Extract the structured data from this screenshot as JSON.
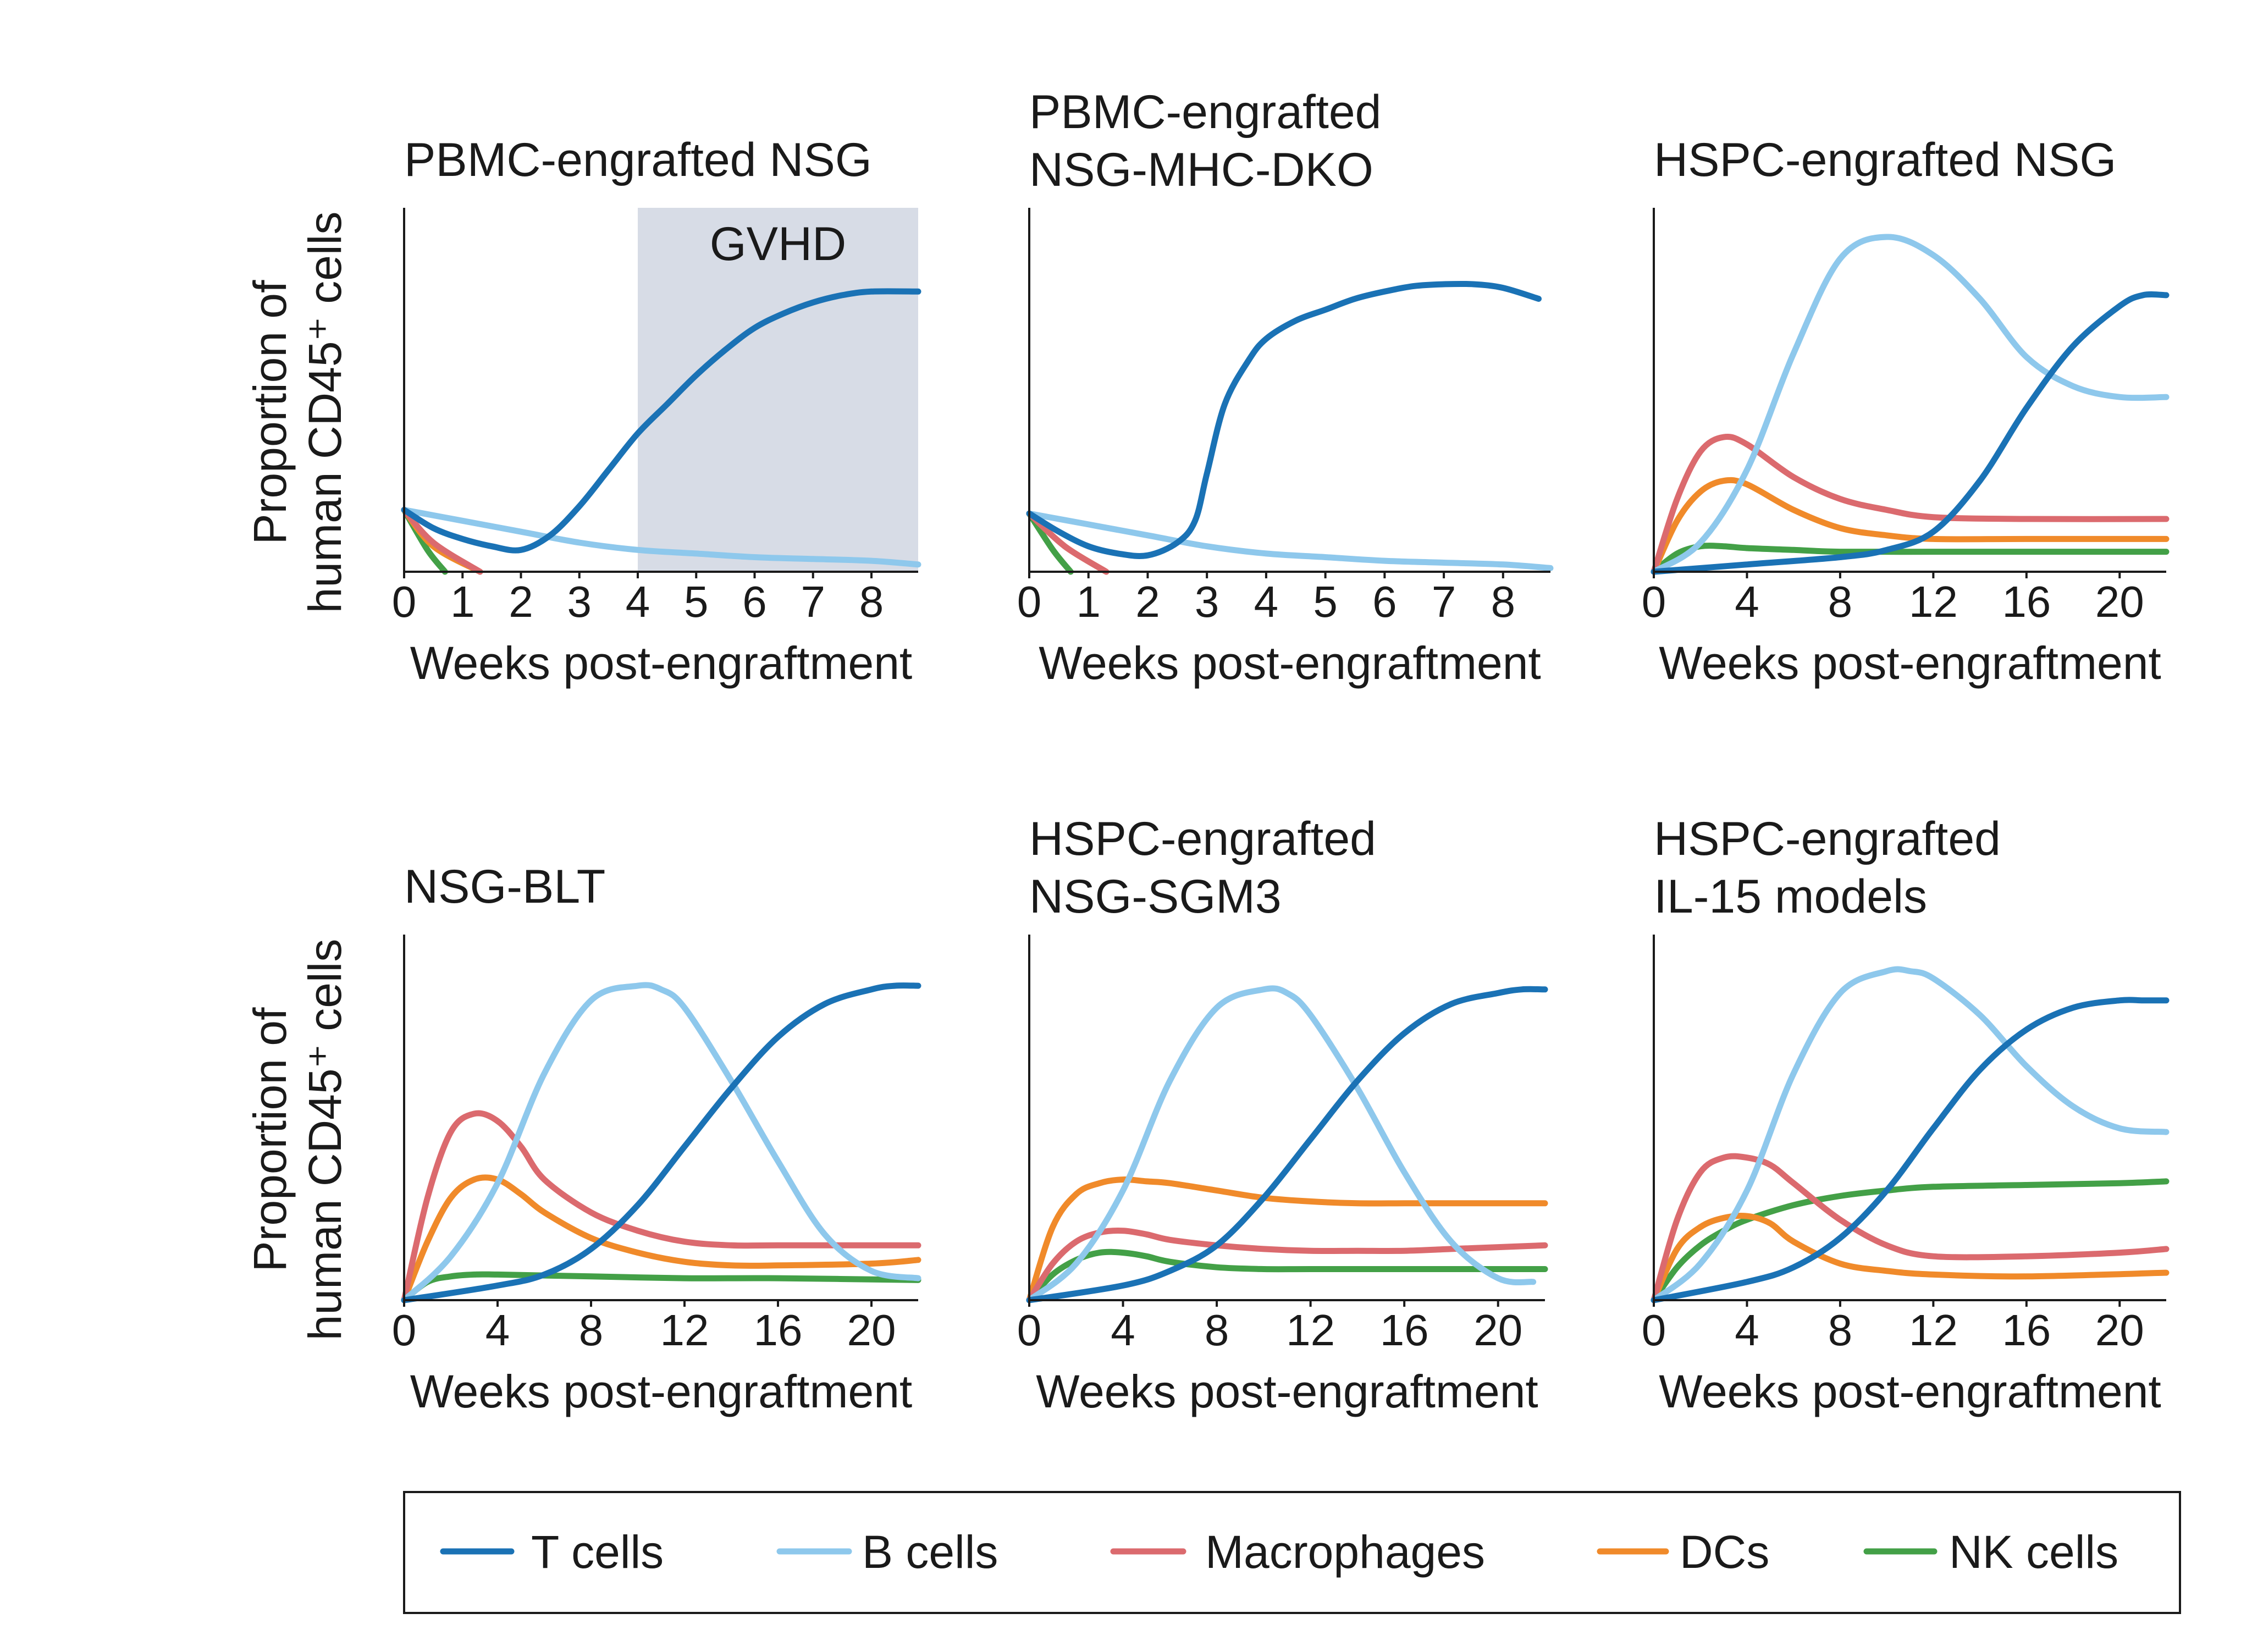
{
  "series_colors": {
    "T cells": "#1a72b5",
    "B cells": "#8ec8ec",
    "Macrophages": "#db6a6e",
    "DCs": "#f08a2a",
    "NK cells": "#43a047"
  },
  "shade_color": "#d7dce6",
  "legend": {
    "items": [
      {
        "name": "T cells",
        "label": "T cells"
      },
      {
        "name": "B cells",
        "label": "B cells"
      },
      {
        "name": "Macrophages",
        "label": "Macrophages"
      },
      {
        "name": "DCs",
        "label": "DCs"
      },
      {
        "name": "NK cells",
        "label": "NK cells"
      }
    ]
  },
  "y_axis_label": [
    "Proportion of",
    "human CD45⁺ cells"
  ],
  "chart_data": [
    {
      "type": "line",
      "title": [
        "PBMC-engrafted NSG"
      ],
      "xlabel": "Weeks post-engraftment",
      "ylabel": "Proportion of human CD45⁺ cells",
      "xlim": [
        0,
        8.8
      ],
      "ylim": [
        0,
        100
      ],
      "xticks": [
        0,
        1,
        2,
        3,
        4,
        5,
        6,
        7,
        8
      ],
      "shaded_region": {
        "label": "GVHD",
        "x": [
          4,
          8.8
        ]
      },
      "series": [
        {
          "name": "T cells",
          "x": [
            0,
            0.5,
            1,
            1.5,
            2,
            2.5,
            3,
            3.5,
            4,
            4.5,
            5,
            5.5,
            6,
            6.5,
            7,
            7.5,
            8,
            8.8
          ],
          "y": [
            17,
            12,
            9,
            7,
            6,
            10,
            18,
            28,
            38,
            46,
            54,
            61,
            67,
            71,
            74,
            76,
            77,
            77
          ]
        },
        {
          "name": "B cells",
          "x": [
            0,
            1,
            2,
            3,
            4,
            5,
            6,
            7,
            8,
            8.8
          ],
          "y": [
            17,
            14,
            11,
            8,
            6,
            5,
            4,
            3.5,
            3,
            2
          ]
        },
        {
          "name": "Macrophages",
          "x": [
            0,
            0.5,
            1.3
          ],
          "y": [
            17,
            8,
            0
          ]
        },
        {
          "name": "DCs",
          "x": [
            0,
            0.5,
            1.3
          ],
          "y": [
            17,
            7,
            0
          ]
        },
        {
          "name": "NK cells",
          "x": [
            0,
            0.4,
            0.7
          ],
          "y": [
            17,
            6,
            0
          ]
        }
      ]
    },
    {
      "type": "line",
      "title": [
        "PBMC-engrafted",
        "NSG-MHC-DKO"
      ],
      "xlabel": "Weeks post-engraftment",
      "ylabel": "Proportion of human CD45⁺ cells",
      "xlim": [
        0,
        8.8
      ],
      "ylim": [
        0,
        100
      ],
      "xticks": [
        0,
        1,
        2,
        3,
        4,
        5,
        6,
        7,
        8
      ],
      "series": [
        {
          "name": "T cells",
          "x": [
            0,
            0.5,
            1,
            1.5,
            2,
            2.5,
            2.8,
            3,
            3.3,
            3.7,
            4,
            4.5,
            5,
            5.5,
            6,
            6.5,
            7,
            7.5,
            8,
            8.6
          ],
          "y": [
            16,
            11,
            7,
            5,
            4.5,
            8,
            14,
            27,
            46,
            58,
            64,
            69,
            72,
            75,
            77,
            78.5,
            79,
            79,
            78,
            75
          ]
        },
        {
          "name": "B cells",
          "x": [
            0,
            1,
            2,
            3,
            4,
            5,
            6,
            7,
            8,
            8.8
          ],
          "y": [
            16,
            13,
            10,
            7,
            5,
            4,
            3,
            2.5,
            2,
            1
          ]
        },
        {
          "name": "Macrophages",
          "x": [
            0,
            0.6,
            1.3
          ],
          "y": [
            16,
            7,
            0
          ]
        },
        {
          "name": "DCs",
          "x": [
            0,
            0.6,
            1.3
          ],
          "y": [
            16,
            7,
            0
          ]
        },
        {
          "name": "NK cells",
          "x": [
            0,
            0.4,
            0.7
          ],
          "y": [
            16,
            6,
            0
          ]
        }
      ]
    },
    {
      "type": "line",
      "title": [
        "HSPC-engrafted NSG"
      ],
      "xlabel": "Weeks post-engraftment",
      "ylabel": "Proportion of human CD45⁺ cells",
      "xlim": [
        0,
        22
      ],
      "ylim": [
        0,
        100
      ],
      "xticks": [
        0,
        4,
        8,
        12,
        16,
        20
      ],
      "series": [
        {
          "name": "T cells",
          "x": [
            0,
            4,
            8,
            10,
            12,
            14,
            16,
            18,
            20,
            21,
            22
          ],
          "y": [
            0,
            2,
            4,
            6,
            11,
            25,
            45,
            62,
            73,
            76,
            76
          ]
        },
        {
          "name": "B cells",
          "x": [
            0,
            2,
            4,
            6,
            8,
            10,
            12,
            14,
            16,
            18,
            20,
            22
          ],
          "y": [
            0,
            8,
            28,
            60,
            86,
            92,
            87,
            75,
            59,
            51,
            48,
            48
          ]
        },
        {
          "name": "Macrophages",
          "x": [
            0,
            1,
            2,
            3,
            4,
            6,
            8,
            10,
            12,
            16,
            22
          ],
          "y": [
            0,
            20,
            33,
            37,
            35,
            26,
            20,
            17,
            15,
            14.5,
            14.5
          ]
        },
        {
          "name": "DCs",
          "x": [
            0,
            1,
            2,
            3,
            4,
            6,
            8,
            10,
            12,
            16,
            22
          ],
          "y": [
            0,
            14,
            22,
            25,
            24,
            17,
            12,
            10,
            9,
            9,
            9
          ]
        },
        {
          "name": "NK cells",
          "x": [
            0,
            1,
            2,
            3,
            4,
            6,
            8,
            12,
            16,
            22
          ],
          "y": [
            0,
            5,
            7,
            7,
            6.5,
            6,
            5.5,
            5.5,
            5.5,
            5.5
          ]
        }
      ]
    },
    {
      "type": "line",
      "title": [
        "NSG-BLT"
      ],
      "xlabel": "Weeks post-engraftment",
      "ylabel": "Proportion of human CD45⁺ cells",
      "xlim": [
        0,
        22
      ],
      "ylim": [
        0,
        100
      ],
      "xticks": [
        0,
        4,
        8,
        12,
        16,
        20
      ],
      "series": [
        {
          "name": "T cells",
          "x": [
            0,
            4,
            6,
            8,
            10,
            12,
            14,
            16,
            18,
            20,
            21,
            22
          ],
          "y": [
            0,
            4,
            7,
            14,
            26,
            42,
            58,
            72,
            81,
            85,
            86,
            86
          ]
        },
        {
          "name": "B cells",
          "x": [
            0,
            2,
            4,
            6,
            8,
            10,
            11,
            12,
            14,
            16,
            18,
            20,
            22
          ],
          "y": [
            0,
            12,
            32,
            62,
            82,
            86,
            85,
            80,
            60,
            38,
            18,
            8,
            6
          ]
        },
        {
          "name": "Macrophages",
          "x": [
            0,
            1,
            2,
            3,
            4,
            5,
            6,
            8,
            10,
            12,
            14,
            16,
            22
          ],
          "y": [
            0,
            28,
            46,
            51,
            49,
            42,
            33,
            24,
            19,
            16,
            15,
            15,
            15
          ]
        },
        {
          "name": "DCs",
          "x": [
            0,
            1,
            2,
            3,
            4,
            5,
            6,
            8,
            10,
            12,
            14,
            16,
            20,
            22
          ],
          "y": [
            0,
            16,
            28,
            33,
            33,
            29,
            24,
            17,
            13,
            10.5,
            9.5,
            9.5,
            10,
            11
          ]
        },
        {
          "name": "NK cells",
          "x": [
            0,
            1,
            2,
            3,
            4,
            8,
            12,
            16,
            22
          ],
          "y": [
            0,
            5,
            6.5,
            7,
            7,
            6.5,
            6,
            6,
            5.5
          ]
        }
      ]
    },
    {
      "type": "line",
      "title": [
        "HSPC-engrafted",
        "NSG-SGM3"
      ],
      "xlabel": "Weeks post-engraftment",
      "ylabel": "Proportion of human CD45⁺ cells",
      "xlim": [
        0,
        22
      ],
      "ylim": [
        0,
        100
      ],
      "xticks": [
        0,
        4,
        8,
        12,
        16,
        20
      ],
      "series": [
        {
          "name": "T cells",
          "x": [
            0,
            4,
            6,
            8,
            10,
            12,
            14,
            16,
            18,
            20,
            21,
            22
          ],
          "y": [
            0,
            4,
            8,
            15,
            28,
            44,
            60,
            73,
            81,
            84,
            85,
            85
          ]
        },
        {
          "name": "B cells",
          "x": [
            0,
            2,
            4,
            6,
            8,
            10,
            11,
            12,
            14,
            16,
            18,
            20,
            21.5
          ],
          "y": [
            0,
            10,
            30,
            60,
            80,
            85,
            84,
            78,
            58,
            35,
            16,
            6,
            5
          ]
        },
        {
          "name": "Macrophages",
          "x": [
            0,
            1,
            2,
            3,
            4,
            5,
            6,
            8,
            10,
            12,
            14,
            16,
            18,
            20,
            22
          ],
          "y": [
            0,
            10,
            16,
            18.5,
            19,
            18,
            16.5,
            15,
            14,
            13.5,
            13.5,
            13.5,
            14,
            14.5,
            15
          ]
        },
        {
          "name": "DCs",
          "x": [
            0,
            1,
            2,
            3,
            4,
            5,
            6,
            8,
            10,
            12,
            14,
            16,
            18,
            20,
            22
          ],
          "y": [
            0,
            20,
            29,
            32,
            33,
            32.5,
            32,
            30,
            28,
            27,
            26.5,
            26.5,
            26.5,
            26.5,
            26.5
          ]
        },
        {
          "name": "NK cells",
          "x": [
            0,
            1,
            2,
            3,
            4,
            5,
            6,
            8,
            10,
            12,
            16,
            20,
            22
          ],
          "y": [
            0,
            7,
            11,
            13,
            13,
            12,
            10.5,
            9,
            8.5,
            8.5,
            8.5,
            8.5,
            8.5
          ]
        }
      ]
    },
    {
      "type": "line",
      "title": [
        "HSPC-engrafted",
        "IL-15 models"
      ],
      "xlabel": "Weeks post-engraftment",
      "ylabel": "Proportion of human CD45⁺ cells",
      "xlim": [
        0,
        22
      ],
      "ylim": [
        0,
        100
      ],
      "xticks": [
        0,
        4,
        8,
        12,
        16,
        20
      ],
      "series": [
        {
          "name": "T cells",
          "x": [
            0,
            4,
            6,
            8,
            10,
            12,
            14,
            16,
            18,
            20,
            21,
            22
          ],
          "y": [
            0,
            5,
            9,
            17,
            30,
            47,
            63,
            74,
            80,
            82,
            82,
            82
          ]
        },
        {
          "name": "B cells",
          "x": [
            0,
            2,
            4,
            6,
            8,
            10,
            11,
            12,
            14,
            16,
            18,
            20,
            22
          ],
          "y": [
            0,
            10,
            30,
            62,
            84,
            90,
            90,
            88,
            78,
            64,
            53,
            47,
            46
          ]
        },
        {
          "name": "Macrophages",
          "x": [
            0,
            1,
            2,
            3,
            4,
            5,
            6,
            8,
            10,
            12,
            16,
            20,
            22
          ],
          "y": [
            0,
            22,
            35,
            39,
            39,
            37,
            32,
            22,
            15,
            12,
            12,
            13,
            14
          ]
        },
        {
          "name": "DCs",
          "x": [
            0,
            1,
            2,
            3,
            4,
            5,
            6,
            8,
            10,
            12,
            16,
            22
          ],
          "y": [
            0,
            14,
            20,
            22.5,
            23,
            21,
            16,
            10,
            8,
            7,
            6.5,
            7.5
          ]
        },
        {
          "name": "NK cells",
          "x": [
            0,
            1,
            2,
            3,
            4,
            6,
            8,
            10,
            12,
            16,
            20,
            22
          ],
          "y": [
            0,
            9,
            15,
            19,
            22,
            26,
            28.5,
            30,
            31,
            31.5,
            32,
            32.5
          ]
        }
      ]
    }
  ]
}
